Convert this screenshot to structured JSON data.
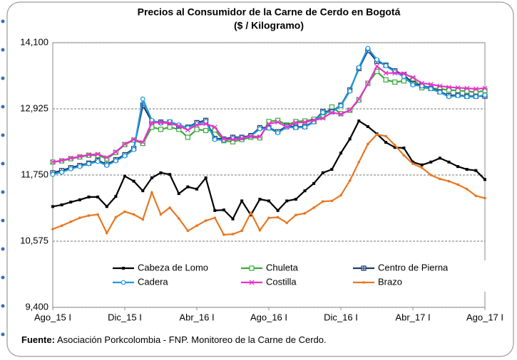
{
  "chart_data": {
    "type": "line",
    "title": "Precios al Consumidor de la Carne de Cerdo en Bogotá",
    "subtitle": "($ / Kilogramo)",
    "source_label": "Fuente:",
    "source": "Asociación Porkcolombia - FNP.  Monitoreo de la Carne de Cerdo.",
    "categories": [
      "Ago_15 I",
      null,
      null,
      null,
      null,
      null,
      null,
      null,
      "Dic_15 I",
      null,
      null,
      null,
      null,
      null,
      null,
      null,
      "Abr_16 I",
      null,
      null,
      null,
      null,
      null,
      null,
      null,
      "Ago_16 I",
      null,
      null,
      null,
      null,
      null,
      null,
      null,
      "Dic_16 I",
      null,
      null,
      null,
      null,
      null,
      null,
      null,
      "Abr_17 I",
      null,
      null,
      null,
      null,
      null,
      null,
      null,
      "Ago_17 I"
    ],
    "ylim": [
      9400,
      14100
    ],
    "yticks": [
      {
        "value": 9400,
        "label": "9,400"
      },
      {
        "value": 10575,
        "label": "10,575"
      },
      {
        "value": 11750,
        "label": "11,750"
      },
      {
        "value": 12925,
        "label": "12,925"
      },
      {
        "value": 14100,
        "label": "14,100"
      }
    ],
    "grid": true,
    "series": [
      {
        "name": "Cabeza de Lomo",
        "color": "#000000",
        "marker": "square",
        "values": [
          11190,
          11220,
          11270,
          11310,
          11360,
          11360,
          11190,
          11370,
          11730,
          11640,
          11470,
          11700,
          11790,
          11760,
          11420,
          11540,
          11500,
          11700,
          11120,
          11130,
          10970,
          11290,
          11040,
          11320,
          11290,
          11120,
          11290,
          11320,
          11470,
          11600,
          11790,
          11850,
          12140,
          12390,
          12710,
          12610,
          12480,
          12330,
          12240,
          12230,
          11980,
          11930,
          11980,
          12050,
          11980,
          11900,
          11850,
          11830,
          11670
        ]
      },
      {
        "name": "Chuleta",
        "color": "#3aaa3a",
        "marker": "square-open",
        "values": [
          11980,
          12000,
          12040,
          12070,
          12100,
          12100,
          12040,
          12150,
          12290,
          12370,
          12310,
          12600,
          12560,
          12600,
          12560,
          12420,
          12560,
          12540,
          12550,
          12360,
          12340,
          12380,
          12420,
          12410,
          12700,
          12720,
          12640,
          12700,
          12710,
          12740,
          12780,
          12960,
          12840,
          12900,
          13080,
          13380,
          13590,
          13440,
          13400,
          13420,
          13460,
          13300,
          13290,
          13280,
          13260,
          13250,
          13240,
          13220,
          13250
        ]
      },
      {
        "name": "Centro de Pierna",
        "color": "#1f3a6e",
        "marker": "square-plus",
        "values": [
          11790,
          11830,
          11880,
          11920,
          11960,
          12010,
          11940,
          12020,
          12110,
          12220,
          12990,
          12700,
          12690,
          12690,
          12620,
          12600,
          12680,
          12720,
          12400,
          12390,
          12420,
          12420,
          12450,
          12590,
          12590,
          12520,
          12620,
          12600,
          12610,
          12700,
          12880,
          12880,
          12990,
          13260,
          13640,
          13960,
          13770,
          13700,
          13600,
          13530,
          13370,
          13340,
          13290,
          13230,
          13160,
          13170,
          13150,
          13150,
          13150
        ]
      },
      {
        "name": "Cadera",
        "color": "#1e9be0",
        "marker": "circle-open",
        "values": [
          11760,
          11800,
          11860,
          11900,
          11950,
          11990,
          11920,
          12000,
          12090,
          12200,
          13100,
          12720,
          12670,
          12700,
          12640,
          12590,
          12660,
          12700,
          12380,
          12370,
          12400,
          12410,
          12440,
          12570,
          12580,
          12500,
          12600,
          12590,
          12600,
          12690,
          12860,
          12870,
          12980,
          13240,
          13660,
          14000,
          13800,
          13690,
          13580,
          13500,
          13350,
          13330,
          13280,
          13220,
          13140,
          13160,
          13140,
          13140,
          13170
        ]
      },
      {
        "name": "Costilla",
        "color": "#e633cc",
        "marker": "x",
        "values": [
          11980,
          12010,
          12050,
          12080,
          12110,
          12120,
          12060,
          12160,
          12300,
          12380,
          12330,
          12680,
          12680,
          12670,
          12620,
          12550,
          12640,
          12660,
          12600,
          12390,
          12380,
          12400,
          12440,
          12430,
          12660,
          12690,
          12600,
          12680,
          12690,
          12720,
          12760,
          12860,
          12830,
          12900,
          13100,
          13370,
          13680,
          13560,
          13560,
          13550,
          13480,
          13380,
          13360,
          13330,
          13310,
          13300,
          13290,
          13280,
          13290
        ]
      },
      {
        "name": "Brazo",
        "color": "#e87722",
        "marker": "circle",
        "values": [
          10790,
          10850,
          10920,
          10990,
          11030,
          11050,
          10720,
          11000,
          11100,
          11050,
          10960,
          11440,
          11050,
          11170,
          10980,
          10760,
          10850,
          10940,
          10990,
          10690,
          10700,
          10760,
          11080,
          10770,
          10990,
          11000,
          10900,
          11040,
          11070,
          11170,
          11280,
          11290,
          11390,
          11650,
          11980,
          12300,
          12470,
          12440,
          12280,
          12100,
          11950,
          11880,
          11750,
          11680,
          11640,
          11580,
          11500,
          11380,
          11340
        ]
      }
    ]
  }
}
